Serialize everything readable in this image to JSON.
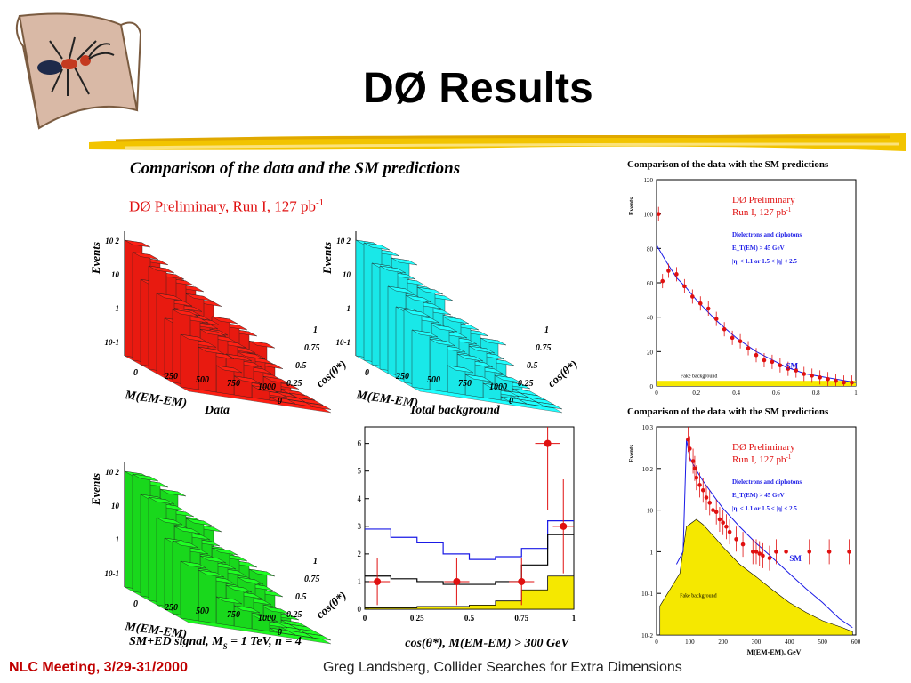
{
  "slide": {
    "title": "DØ Results",
    "footer_left": "NLC Meeting, 3/29-31/2000",
    "footer_right": "Greg Landsberg, Collider Searches for Extra Dimensions",
    "logo_icon": "ant-on-scroll-icon",
    "brush_color": "#f2c400"
  },
  "left_block": {
    "heading": "Comparison of the data and the SM predictions",
    "preliminary": "DØ Preliminary, Run I, 127 pb",
    "preliminary_sup": "-1"
  },
  "chart_data": [
    {
      "type": "lego3d",
      "caption": "Data",
      "zlabel": "Events",
      "xlabel": "M(EM-EM)",
      "ylabel": "cos(θ*)",
      "x_ticks": [
        "0",
        "250",
        "500",
        "750",
        "1000"
      ],
      "y_ticks": [
        "0",
        "0.25",
        "0.5",
        "0.75",
        "1"
      ],
      "z_ticks": [
        "10-1",
        "1",
        "10",
        "10 2"
      ],
      "color": "#e81a10"
    },
    {
      "type": "lego3d",
      "caption": "Total background",
      "zlabel": "Events",
      "xlabel": "M(EM-EM)",
      "ylabel": "cos(θ*)",
      "x_ticks": [
        "0",
        "250",
        "500",
        "750",
        "1000"
      ],
      "y_ticks": [
        "0",
        "0.25",
        "0.5",
        "0.75",
        "1"
      ],
      "z_ticks": [
        "10-1",
        "1",
        "10",
        "10 2"
      ],
      "color": "#19e8e8"
    },
    {
      "type": "lego3d",
      "caption": "SM+ED signal, M",
      "caption_sub": "S",
      "caption_rest": " = 1 TeV, n = 4",
      "zlabel": "Events",
      "xlabel": "M(EM-EM)",
      "ylabel": "cos(θ*)",
      "x_ticks": [
        "0",
        "250",
        "500",
        "750",
        "1000"
      ],
      "y_ticks": [
        "0",
        "0.25",
        "0.5",
        "0.75",
        "1"
      ],
      "z_ticks": [
        "10-1",
        "1",
        "10",
        "10 2"
      ],
      "color": "#19d81c"
    },
    {
      "type": "histogram",
      "xlabel": "cos(θ*), M(EM-EM) > 300 GeV",
      "x_ticks": [
        "0",
        "0.25",
        "0.5",
        "0.75",
        "1"
      ],
      "y_ticks": [
        "0",
        "1",
        "2",
        "3",
        "4",
        "5",
        "6"
      ],
      "xlim": [
        0,
        1
      ],
      "ylim": [
        0,
        6.6
      ],
      "bin_edges": [
        0,
        0.125,
        0.25,
        0.375,
        0.5,
        0.625,
        0.75,
        0.875,
        1.0
      ],
      "series": [
        {
          "values": [
            2.9,
            2.6,
            2.4,
            2.0,
            1.8,
            1.9,
            2.2,
            3.2
          ],
          "color": "#1a1ae6"
        },
        {
          "values": [
            1.2,
            1.1,
            1.0,
            0.9,
            0.9,
            1.0,
            1.6,
            2.7
          ],
          "color": "#000000"
        },
        {
          "values": [
            0.05,
            0.05,
            0.1,
            0.1,
            0.15,
            0.3,
            0.7,
            1.2
          ],
          "color": "#f5e800",
          "fill": true
        }
      ],
      "data_points": [
        {
          "x": 0.06,
          "y": 1.0,
          "err": 0.85,
          "xerr": 0.06
        },
        {
          "x": 0.44,
          "y": 1.0,
          "err": 0.85,
          "xerr": 0.06
        },
        {
          "x": 0.75,
          "y": 1.0,
          "err": 0.85,
          "xerr": 0.06
        },
        {
          "x": 0.875,
          "y": 6.0,
          "err": 2.4,
          "xerr": 0.06
        },
        {
          "x": 0.95,
          "y": 3.0,
          "err": 1.7,
          "xerr": 0.05
        }
      ]
    },
    {
      "type": "histogram",
      "title": "Comparison of the data with the SM predictions",
      "ylabel": "Events",
      "x_ticks": [
        "0",
        "0.2",
        "0.4",
        "0.6",
        "0.8",
        "1"
      ],
      "y_ticks": [
        "0",
        "20",
        "40",
        "60",
        "80",
        "100",
        "120"
      ],
      "xlim": [
        0,
        1
      ],
      "ylim": [
        0,
        120
      ],
      "preliminary": "DØ Preliminary",
      "run": "Run I, 127 pb",
      "run_sup": "-1",
      "info": [
        "Dielectrons and diphotons",
        "E_T(EM) > 45 GeV",
        "|η| < 1.1 or 1.5 < |η| < 2.5"
      ],
      "annotations": [
        "SM",
        "Fake background"
      ],
      "sm_curve": [
        [
          0,
          82
        ],
        [
          0.05,
          72
        ],
        [
          0.1,
          63
        ],
        [
          0.15,
          57
        ],
        [
          0.2,
          50
        ],
        [
          0.25,
          44
        ],
        [
          0.3,
          38
        ],
        [
          0.35,
          33
        ],
        [
          0.4,
          28
        ],
        [
          0.45,
          24
        ],
        [
          0.5,
          20
        ],
        [
          0.55,
          17
        ],
        [
          0.6,
          14
        ],
        [
          0.65,
          11
        ],
        [
          0.7,
          9
        ],
        [
          0.75,
          7
        ],
        [
          0.8,
          6
        ],
        [
          0.85,
          5
        ],
        [
          0.9,
          4
        ],
        [
          0.95,
          3
        ],
        [
          1.0,
          2
        ]
      ],
      "fake_background": [
        [
          0,
          3
        ],
        [
          0.5,
          2.5
        ],
        [
          1.0,
          2
        ]
      ],
      "data_points": [
        [
          0.01,
          100
        ],
        [
          0.03,
          61
        ],
        [
          0.06,
          67
        ],
        [
          0.1,
          65
        ],
        [
          0.14,
          58
        ],
        [
          0.18,
          52
        ],
        [
          0.22,
          48
        ],
        [
          0.26,
          45
        ],
        [
          0.3,
          39
        ],
        [
          0.34,
          33
        ],
        [
          0.38,
          28
        ],
        [
          0.42,
          26
        ],
        [
          0.46,
          22
        ],
        [
          0.5,
          18
        ],
        [
          0.54,
          15
        ],
        [
          0.58,
          14
        ],
        [
          0.62,
          12
        ],
        [
          0.66,
          10
        ],
        [
          0.7,
          9
        ],
        [
          0.74,
          7
        ],
        [
          0.78,
          6
        ],
        [
          0.82,
          5
        ],
        [
          0.86,
          4
        ],
        [
          0.9,
          3
        ],
        [
          0.94,
          2
        ],
        [
          0.98,
          2
        ]
      ]
    },
    {
      "type": "histogram",
      "title": "Comparison of the data with the SM predictions",
      "ylabel": "Events",
      "xlabel": "M(EM-EM), GeV",
      "x_ticks": [
        "0",
        "100",
        "200",
        "300",
        "400",
        "500",
        "600"
      ],
      "y_ticks": [
        "10-2",
        "10-1",
        "1",
        "10",
        "10 2",
        "10 3"
      ],
      "xlim": [
        0,
        600
      ],
      "log_y": true,
      "ylim": [
        0.01,
        1000
      ],
      "preliminary": "DØ Preliminary",
      "run": "Run I, 127 pb",
      "run_sup": "-1",
      "info": [
        "Dielectrons and diphotons",
        "E_T(EM) > 45 GeV",
        "|η| < 1.1 or 1.5 < |η| < 2.5"
      ],
      "annotations": [
        "SM",
        "Fake background"
      ],
      "sm_curve": [
        [
          60,
          0.5
        ],
        [
          80,
          1.0
        ],
        [
          90,
          500
        ],
        [
          100,
          180
        ],
        [
          120,
          90
        ],
        [
          140,
          50
        ],
        [
          160,
          30
        ],
        [
          180,
          18
        ],
        [
          200,
          11
        ],
        [
          250,
          4
        ],
        [
          300,
          1.6
        ],
        [
          350,
          0.7
        ],
        [
          400,
          0.3
        ],
        [
          450,
          0.13
        ],
        [
          500,
          0.06
        ],
        [
          550,
          0.025
        ],
        [
          590,
          0.015
        ]
      ],
      "fake_curve": [
        [
          10,
          0.05
        ],
        [
          70,
          0.3
        ],
        [
          90,
          4
        ],
        [
          120,
          6
        ],
        [
          140,
          4.5
        ],
        [
          160,
          3
        ],
        [
          180,
          2
        ],
        [
          200,
          1.3
        ],
        [
          250,
          0.5
        ],
        [
          300,
          0.25
        ],
        [
          350,
          0.12
        ],
        [
          400,
          0.06
        ],
        [
          450,
          0.035
        ],
        [
          500,
          0.022
        ],
        [
          560,
          0.015
        ],
        [
          590,
          0.012
        ]
      ],
      "data_points": [
        [
          95,
          500
        ],
        [
          100,
          300
        ],
        [
          110,
          150
        ],
        [
          115,
          100
        ],
        [
          120,
          60
        ],
        [
          130,
          40
        ],
        [
          140,
          30
        ],
        [
          150,
          20
        ],
        [
          160,
          15
        ],
        [
          170,
          10
        ],
        [
          180,
          9
        ],
        [
          190,
          6
        ],
        [
          200,
          5
        ],
        [
          210,
          4
        ],
        [
          220,
          3
        ],
        [
          240,
          2
        ],
        [
          260,
          1.5
        ],
        [
          290,
          1.0
        ],
        [
          300,
          1.0
        ],
        [
          310,
          0.9
        ],
        [
          320,
          0.8
        ],
        [
          340,
          0.7
        ],
        [
          360,
          1.0
        ],
        [
          390,
          1.0
        ],
        [
          460,
          1.0
        ],
        [
          520,
          1.0
        ],
        [
          580,
          1.0
        ]
      ]
    }
  ]
}
